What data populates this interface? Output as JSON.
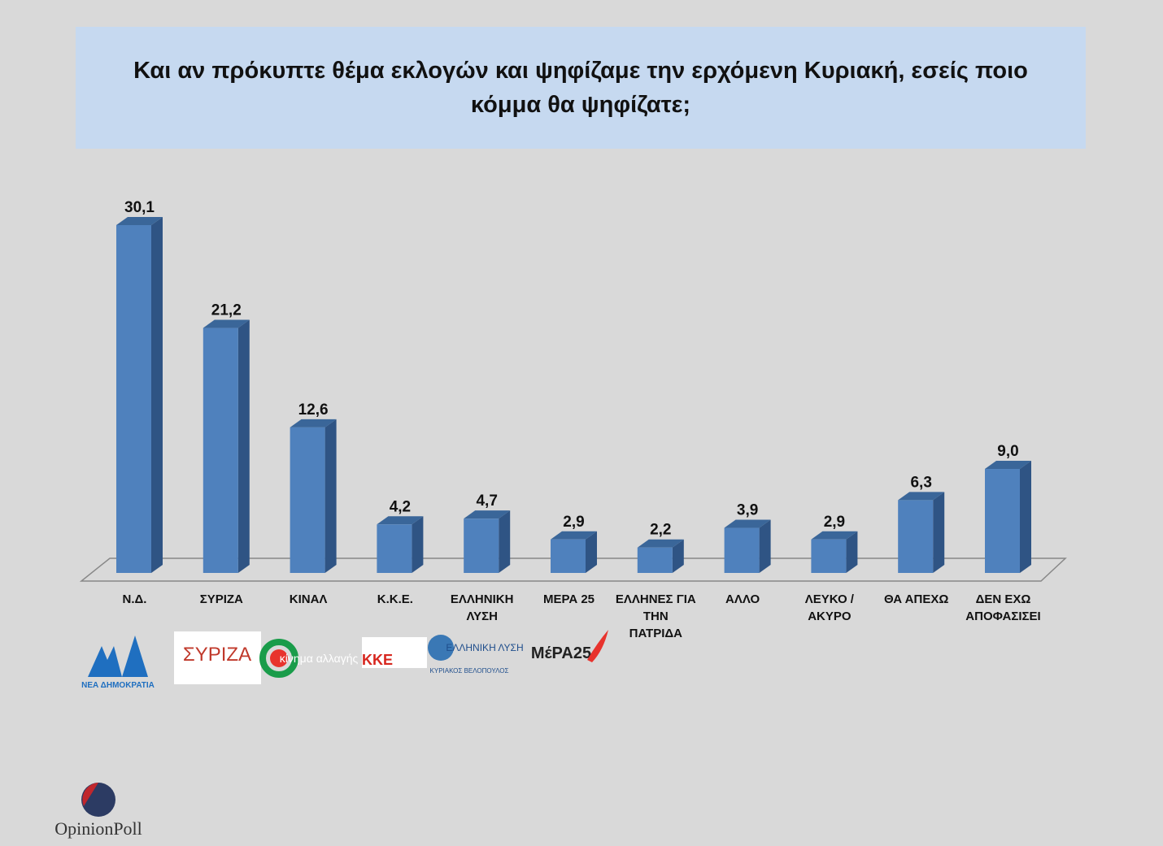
{
  "chart_data": {
    "type": "bar3d",
    "title": "Και αν πρόκυπτε θέμα εκλογών και ψηφίζαμε την ερχόμενη Κυριακή, εσείς ποιο κόμμα θα ψηφίζατε;",
    "categories": [
      "Ν.Δ.",
      "ΣΥΡΙΖΑ",
      "ΚΙΝΑΛ",
      "Κ.Κ.Ε.",
      "ΕΛΛΗΝΙΚΗ ΛΥΣΗ",
      "ΜΕΡΑ 25",
      "ΕΛΛΗΝΕΣ ΓΙΑ ΤΗΝ ΠΑΤΡΙΔΑ",
      "ΑΛΛΟ",
      "ΛΕΥΚΟ / ΑΚΥΡΟ",
      "ΘΑ ΑΠΕΧΩ",
      "ΔΕΝ ΕΧΩ ΑΠΟΦΑΣΙΣΕΙ"
    ],
    "values": [
      30.1,
      21.2,
      12.6,
      4.2,
      4.7,
      2.9,
      2.2,
      3.9,
      2.9,
      6.3,
      9.0
    ],
    "value_labels": [
      "30,1",
      "21,2",
      "12,6",
      "4,2",
      "4,7",
      "2,9",
      "2,2",
      "3,9",
      "2,9",
      "6,3",
      "9,0"
    ],
    "color": "#4f81bd"
  },
  "logos": {
    "nd": "ΝΕΑ ΔΗΜΟΚΡΑΤΙΑ",
    "syriza": "ΣΥΡΙΖΑ",
    "kinal": "κίνημα αλλαγής",
    "kke": "ΚΚΕ",
    "el": "ΕΛΛΗΝΙΚΗ ΛΥΣΗ",
    "el_sub": "ΚΥΡΙΑΚΟΣ ΒΕΛΟΠΟΥΛΟΣ",
    "mera": "ΜέΡΑ25"
  },
  "brand": "OpinionPoll"
}
